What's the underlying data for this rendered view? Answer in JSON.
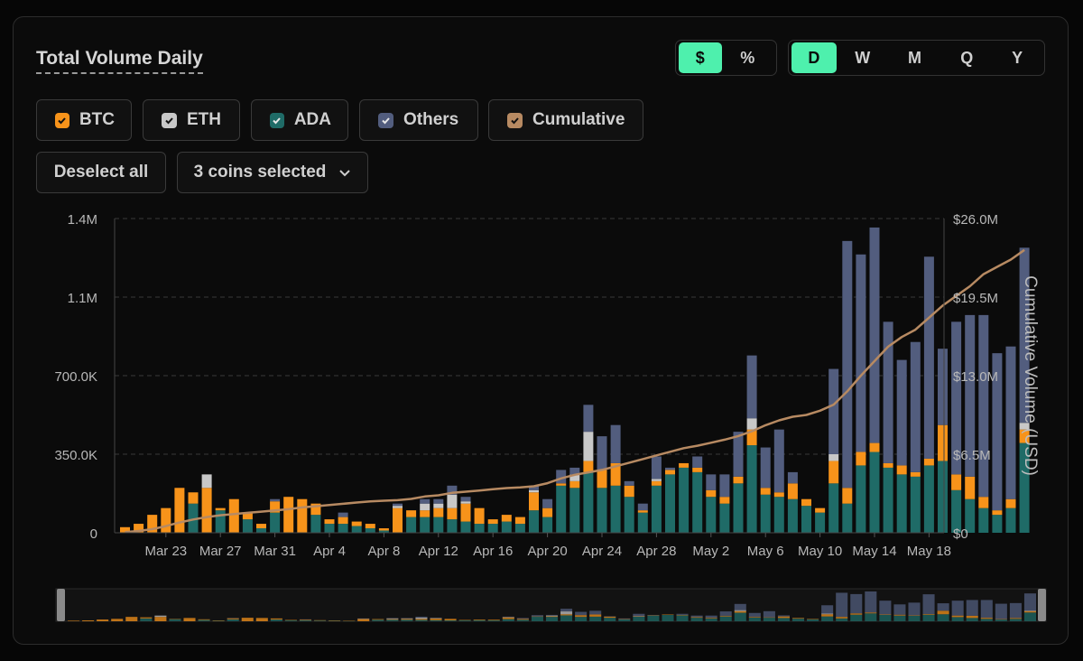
{
  "header": {
    "title": "Total Volume Daily"
  },
  "unit_toggle": [
    {
      "label": "$",
      "active": true
    },
    {
      "label": "%",
      "active": false
    }
  ],
  "period_toggle": [
    {
      "label": "D",
      "active": true
    },
    {
      "label": "W",
      "active": false
    },
    {
      "label": "M",
      "active": false
    },
    {
      "label": "Q",
      "active": false
    },
    {
      "label": "Y",
      "active": false
    }
  ],
  "legend": [
    {
      "label": "BTC",
      "color": "#f7931a",
      "checked": true
    },
    {
      "label": "ETH",
      "color": "#c8c8c8",
      "checked": true
    },
    {
      "label": "ADA",
      "color": "#1f6b67",
      "checked": true
    },
    {
      "label": "Others",
      "color": "#525d7e",
      "checked": true
    },
    {
      "label": "Cumulative",
      "color": "#b78a62",
      "checked": true
    }
  ],
  "controls": {
    "deselect_label": "Deselect all",
    "coins_selected_label": "3 coins selected"
  },
  "colors": {
    "accent": "#4ef0ad",
    "btc": "#f7931a",
    "eth": "#c8c8c8",
    "ada": "#1f6b67",
    "others": "#525d7e",
    "cumulative": "#b78a62"
  },
  "chart_data": {
    "type": "bar",
    "stacked": true,
    "x_start": "Mar 20",
    "x_ticks": [
      "Mar 23",
      "Mar 27",
      "Mar 31",
      "Apr 4",
      "Apr 8",
      "Apr 12",
      "Apr 16",
      "Apr 20",
      "Apr 24",
      "Apr 28",
      "May 2",
      "May 6",
      "May 10",
      "May 14",
      "May 18"
    ],
    "y_left_ticks": [
      "0",
      "350.0K",
      "700.0K",
      "1.1M",
      "1.4M"
    ],
    "y_left_max": 1400000,
    "y_right_ticks": [
      "$0",
      "$6.5M",
      "$13.0M",
      "$19.5M",
      "$26.0M"
    ],
    "y_right_max": 26000000,
    "ylabel_right": "Cumulative Volume (USD)",
    "grid": true,
    "series": [
      {
        "name": "ADA",
        "color": "#1f6b67",
        "values": [
          0,
          0,
          0,
          0,
          0,
          130000,
          0,
          100000,
          0,
          60000,
          20000,
          90000,
          0,
          0,
          80000,
          40000,
          40000,
          30000,
          20000,
          10000,
          0,
          70000,
          70000,
          70000,
          60000,
          50000,
          40000,
          40000,
          50000,
          40000,
          100000,
          70000,
          210000,
          200000,
          270000,
          200000,
          210000,
          160000,
          90000,
          210000,
          260000,
          290000,
          270000,
          160000,
          130000,
          220000,
          390000,
          170000,
          160000,
          150000,
          120000,
          90000,
          220000,
          130000,
          300000,
          360000,
          290000,
          260000,
          250000,
          300000,
          320000,
          190000,
          150000,
          110000,
          80000,
          110000,
          400000
        ]
      },
      {
        "name": "BTC",
        "color": "#f7931a",
        "values": [
          25000,
          40000,
          80000,
          110000,
          200000,
          50000,
          200000,
          10000,
          150000,
          30000,
          20000,
          50000,
          160000,
          150000,
          50000,
          20000,
          30000,
          20000,
          20000,
          10000,
          110000,
          30000,
          30000,
          40000,
          50000,
          80000,
          70000,
          20000,
          30000,
          30000,
          80000,
          40000,
          10000,
          30000,
          50000,
          80000,
          100000,
          50000,
          10000,
          20000,
          20000,
          20000,
          20000,
          30000,
          30000,
          30000,
          70000,
          30000,
          20000,
          70000,
          30000,
          20000,
          100000,
          70000,
          60000,
          40000,
          20000,
          40000,
          20000,
          30000,
          160000,
          70000,
          100000,
          50000,
          20000,
          40000,
          60000
        ]
      },
      {
        "name": "ETH",
        "color": "#c8c8c8",
        "values": [
          0,
          0,
          0,
          0,
          0,
          0,
          60000,
          0,
          0,
          0,
          0,
          0,
          0,
          0,
          0,
          0,
          0,
          0,
          0,
          0,
          10000,
          0,
          30000,
          20000,
          60000,
          10000,
          0,
          0,
          0,
          0,
          10000,
          0,
          0,
          30000,
          130000,
          0,
          0,
          0,
          0,
          10000,
          0,
          0,
          0,
          0,
          0,
          0,
          50000,
          0,
          0,
          0,
          0,
          0,
          30000,
          0,
          0,
          0,
          0,
          0,
          0,
          0,
          0,
          0,
          0,
          0,
          0,
          0,
          30000
        ]
      },
      {
        "name": "Others",
        "color": "#525d7e",
        "values": [
          0,
          0,
          0,
          0,
          0,
          0,
          0,
          0,
          0,
          0,
          0,
          10000,
          0,
          0,
          0,
          0,
          20000,
          0,
          0,
          0,
          10000,
          0,
          20000,
          20000,
          40000,
          20000,
          0,
          0,
          0,
          0,
          20000,
          40000,
          60000,
          30000,
          120000,
          150000,
          170000,
          20000,
          30000,
          100000,
          10000,
          0,
          50000,
          70000,
          100000,
          200000,
          280000,
          180000,
          280000,
          50000,
          0,
          0,
          380000,
          1100000,
          880000,
          960000,
          630000,
          470000,
          580000,
          900000,
          340000,
          680000,
          720000,
          810000,
          700000,
          680000,
          780000
        ]
      },
      {
        "name": "Cumulative",
        "color": "#b78a62",
        "type": "line",
        "values": [
          50000,
          150000,
          300000,
          550000,
          850000,
          1100000,
          1300000,
          1450000,
          1550000,
          1650000,
          1750000,
          1850000,
          1950000,
          2100000,
          2200000,
          2300000,
          2400000,
          2500000,
          2600000,
          2650000,
          2700000,
          2800000,
          3000000,
          3100000,
          3300000,
          3400000,
          3500000,
          3600000,
          3700000,
          3750000,
          3850000,
          4100000,
          4500000,
          4800000,
          5000000,
          5200000,
          5500000,
          5800000,
          6100000,
          6400000,
          6700000,
          7000000,
          7200000,
          7450000,
          7700000,
          8000000,
          8400000,
          8900000,
          9300000,
          9600000,
          9750000,
          10100000,
          10600000,
          11700000,
          13000000,
          14200000,
          15400000,
          16200000,
          16800000,
          17800000,
          18800000,
          19600000,
          20400000,
          21400000,
          22000000,
          22600000,
          23400000
        ]
      }
    ]
  }
}
